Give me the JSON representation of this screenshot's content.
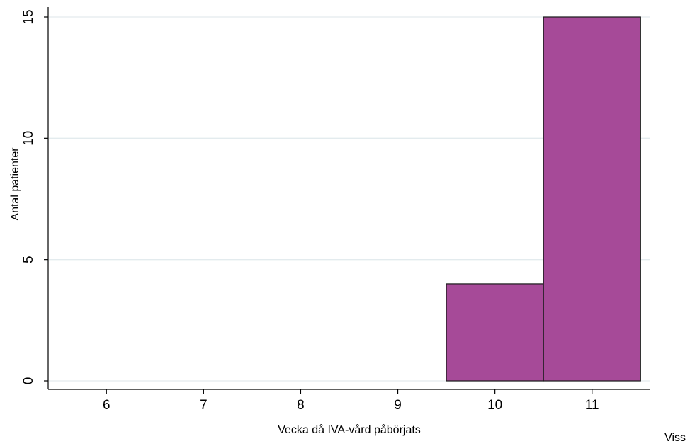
{
  "chart_data": {
    "type": "bar",
    "title": "",
    "xlabel": "Vecka då IVA-vård påbörjats",
    "ylabel": "Antal patienter",
    "x": [
      10,
      11
    ],
    "values": [
      4,
      15
    ],
    "xlim": [
      5.4,
      11.6
    ],
    "ylim": [
      0,
      15
    ],
    "xticks": [
      "6",
      "7",
      "8",
      "9",
      "10",
      "11"
    ],
    "yticks": [
      "0",
      "5",
      "10",
      "15"
    ],
    "grid": true,
    "legend": "none",
    "bar_color": "#a64a98",
    "bar_edge_color": "#1a1a1a",
    "grid_color": "#e3ebee"
  },
  "footer": {
    "corner_text": "Viss"
  }
}
